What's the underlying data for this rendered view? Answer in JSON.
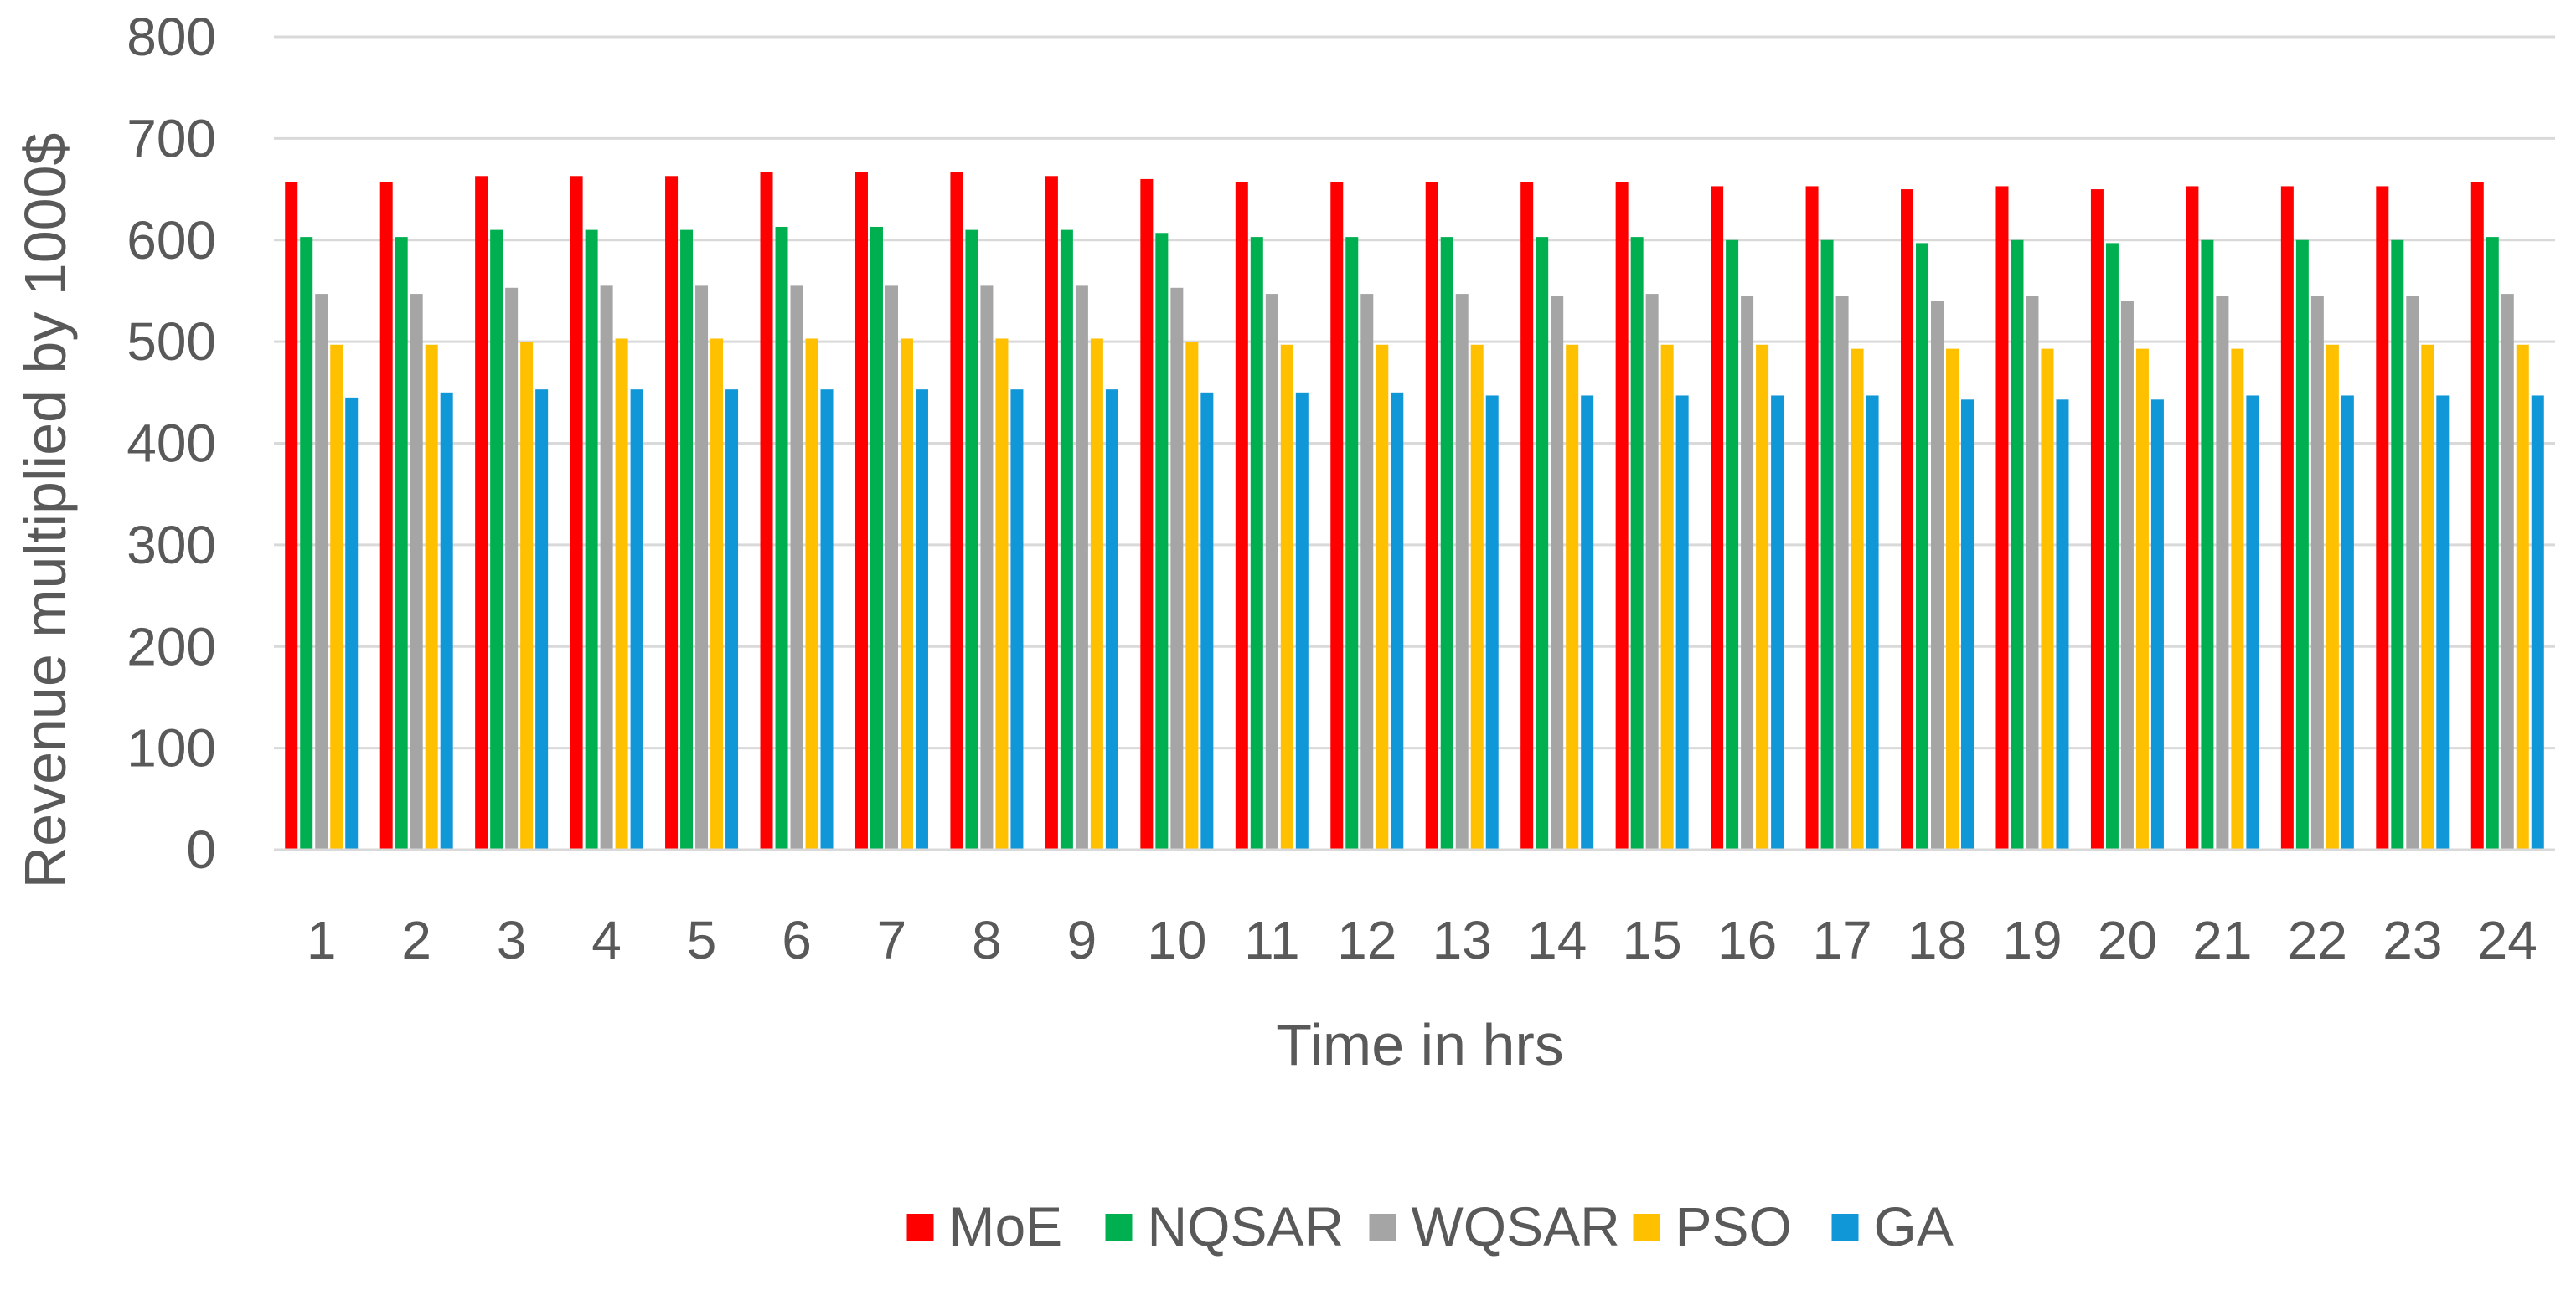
{
  "chart_data": {
    "type": "bar",
    "title": "",
    "xlabel": "Time in hrs",
    "ylabel": "Revenue multiplied by 1000$",
    "ylim": [
      0,
      800
    ],
    "yticks": [
      0,
      100,
      200,
      300,
      400,
      500,
      600,
      700,
      800
    ],
    "grid": true,
    "legend_position": "bottom",
    "categories": [
      "1",
      "2",
      "3",
      "4",
      "5",
      "6",
      "7",
      "8",
      "9",
      "10",
      "11",
      "12",
      "13",
      "14",
      "15",
      "16",
      "17",
      "18",
      "19",
      "20",
      "21",
      "22",
      "23",
      "24"
    ],
    "series": [
      {
        "name": "MoE",
        "color": "#FF0000",
        "values": [
          657,
          657,
          663,
          663,
          663,
          667,
          667,
          667,
          663,
          660,
          657,
          657,
          657,
          657,
          657,
          653,
          653,
          650,
          653,
          650,
          653,
          653,
          653,
          657
        ]
      },
      {
        "name": "NQSAR",
        "color": "#00B050",
        "values": [
          603,
          603,
          610,
          610,
          610,
          613,
          613,
          610,
          610,
          607,
          603,
          603,
          603,
          603,
          603,
          600,
          600,
          597,
          600,
          597,
          600,
          600,
          600,
          603
        ]
      },
      {
        "name": "WQSAR",
        "color": "#A5A5A5",
        "values": [
          547,
          547,
          553,
          555,
          555,
          555,
          555,
          555,
          555,
          553,
          547,
          547,
          547,
          545,
          547,
          545,
          545,
          540,
          545,
          540,
          545,
          545,
          545,
          547
        ]
      },
      {
        "name": "PSO",
        "color": "#FFC000",
        "values": [
          497,
          497,
          500,
          503,
          503,
          503,
          503,
          503,
          503,
          500,
          497,
          497,
          497,
          497,
          497,
          497,
          493,
          493,
          493,
          493,
          493,
          497,
          497,
          497
        ]
      },
      {
        "name": "GA",
        "color": "#0F97D8",
        "values": [
          445,
          450,
          453,
          453,
          453,
          453,
          453,
          453,
          453,
          450,
          450,
          450,
          447,
          447,
          447,
          447,
          447,
          443,
          443,
          443,
          447,
          447,
          447,
          447
        ]
      }
    ]
  },
  "colors": {
    "gridline": "#D9D9D9",
    "axis": "#D9D9D9",
    "text": "#595959"
  }
}
